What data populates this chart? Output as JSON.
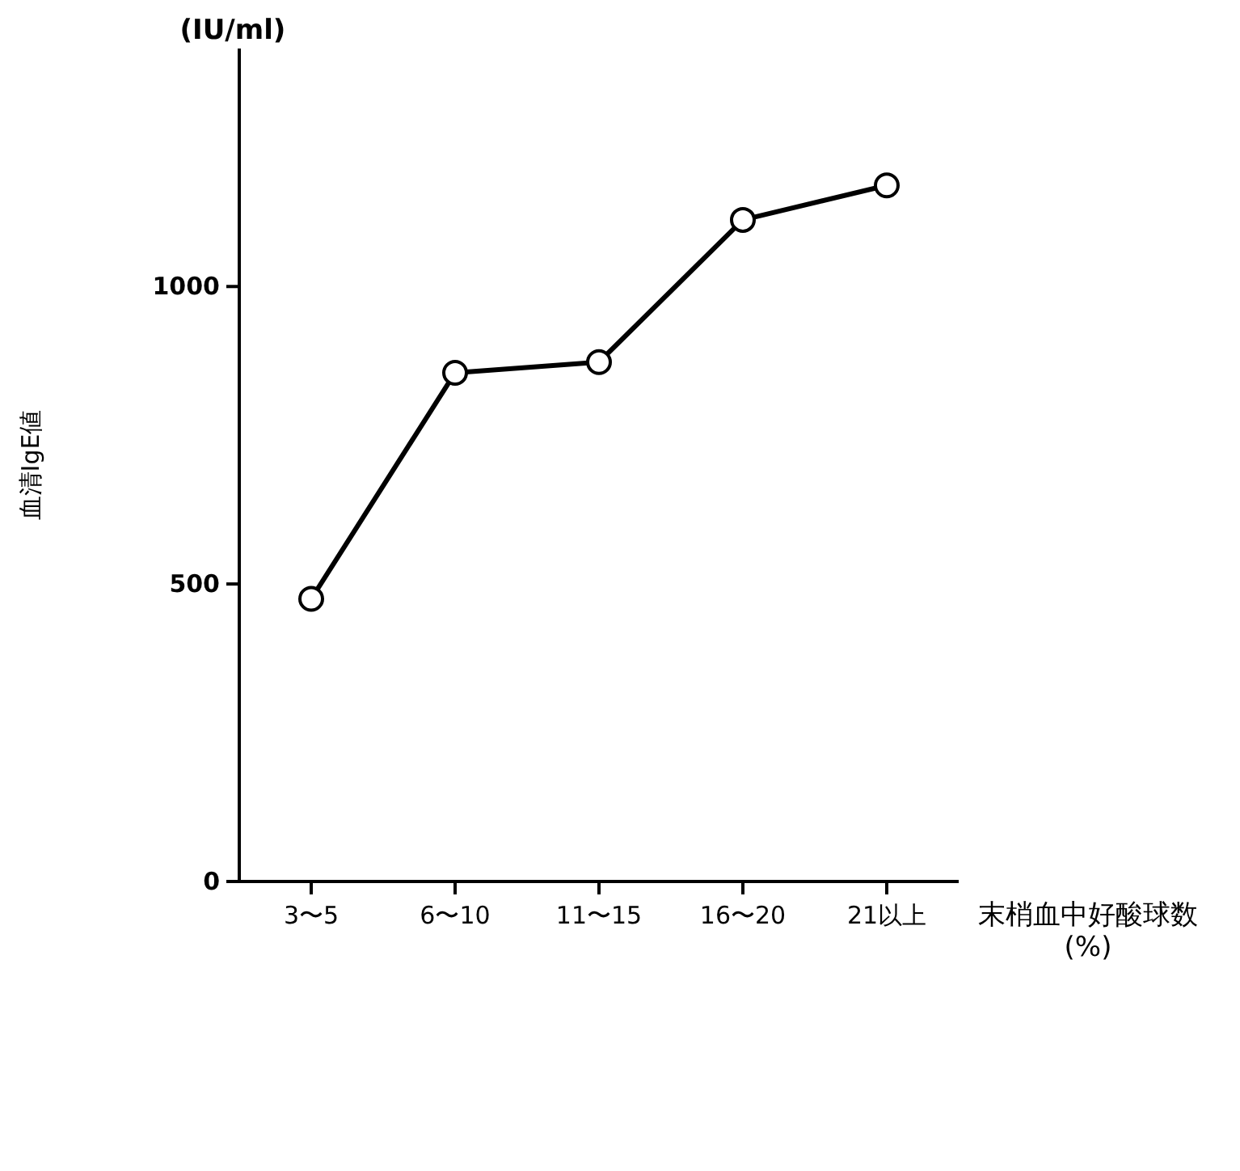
{
  "chart_data": {
    "type": "line",
    "ylabel": "血清IgE値",
    "xlabel": "末梢血中好酸球数\n(%)",
    "annotations": [
      "(IU/ml)"
    ],
    "categories": [
      "3〜5",
      "6〜10",
      "11〜15",
      "16〜20",
      "21以上"
    ],
    "series": [
      {
        "color": "#000000",
        "values": [
          475,
          855,
          873,
          1112,
          1170
        ]
      }
    ],
    "ylim": [
      0,
      1400
    ],
    "yticks": [
      0,
      500,
      1000
    ],
    "marker": "circle",
    "line_style": "solid",
    "grid": false
  }
}
